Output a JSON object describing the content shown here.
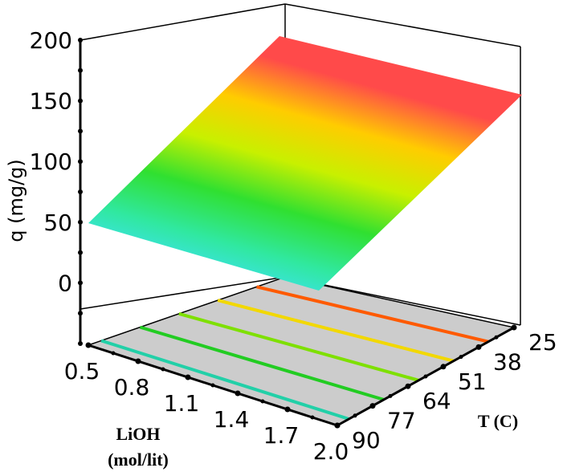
{
  "chart_data": {
    "type": "surface3d",
    "title": "",
    "zlabel": "q (mg/g)",
    "xlabel_line1": "LiOH",
    "xlabel_line2": "(mol/lit)",
    "ylabel": "T (C)",
    "x_ticks": [
      "0.5",
      "0.8",
      "1.1",
      "1.4",
      "1.7",
      "2.0"
    ],
    "y_ticks": [
      "25",
      "38",
      "51",
      "64",
      "77",
      "90"
    ],
    "z_ticks": [
      "0",
      "50",
      "100",
      "150",
      "200"
    ],
    "x_range": [
      0.5,
      2.0
    ],
    "y_range": [
      25,
      90
    ],
    "z_range": [
      -50,
      200
    ],
    "surface": {
      "description": "q depends on T; nearly constant across LiOH",
      "T": [
        25,
        90
      ],
      "q_at_T": [
        162,
        10
      ]
    },
    "floor_contours": [
      {
        "q": 140,
        "color": "#ff5a00"
      },
      {
        "q": 110,
        "color": "#f2d800"
      },
      {
        "q": 80,
        "color": "#7ee000"
      },
      {
        "q": 50,
        "color": "#22cc22"
      },
      {
        "q": 20,
        "color": "#22d0a8"
      }
    ],
    "colormap": [
      "#40e0ff",
      "#30e8a0",
      "#30e030",
      "#c8f000",
      "#ffcc00",
      "#ff4a4a"
    ]
  }
}
